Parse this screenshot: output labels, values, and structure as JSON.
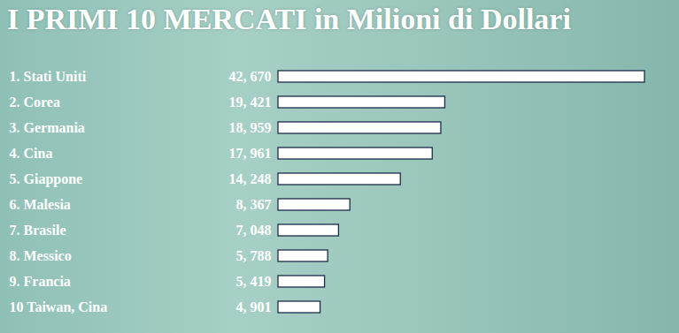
{
  "chart_data": {
    "type": "bar",
    "title": "I PRIMI 10 MERCATI in Milioni di Dollari",
    "orientation": "horizontal",
    "categories": [
      "1. Stati Uniti",
      "2. Corea",
      "3. Germania",
      "4. Cina",
      "5. Giappone",
      "6. Malesia",
      "7. Brasile",
      "8. Messico",
      "9. Francia",
      "10 Taiwan, Cina"
    ],
    "values": [
      42670,
      19421,
      18959,
      17961,
      14248,
      8367,
      7048,
      5788,
      5419,
      4901
    ],
    "value_labels": [
      "42, 670",
      "19, 421",
      "18, 959",
      "17, 961",
      "14, 248",
      "8, 367",
      "7, 048",
      "5, 788",
      "5, 419",
      "4, 901"
    ],
    "data_labels": true,
    "tick_labels": "y",
    "color": "#ffffff"
  }
}
